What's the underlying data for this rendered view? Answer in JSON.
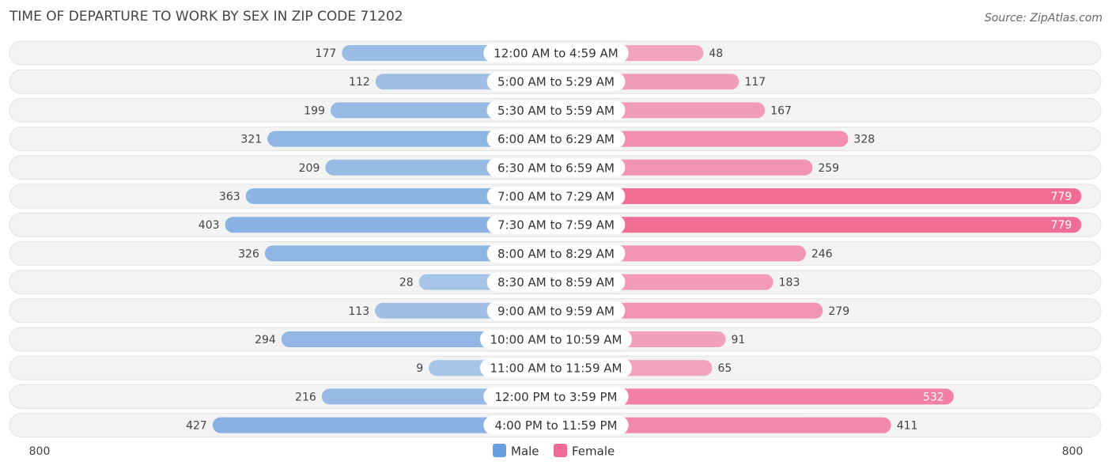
{
  "chart_data": {
    "type": "butterfly",
    "title": "TIME OF DEPARTURE TO WORK BY SEX IN ZIP CODE 71202",
    "source": "Source: ZipAtlas.com",
    "categories": [
      "12:00 AM to 4:59 AM",
      "5:00 AM to 5:29 AM",
      "5:30 AM to 5:59 AM",
      "6:00 AM to 6:29 AM",
      "6:30 AM to 6:59 AM",
      "7:00 AM to 7:29 AM",
      "7:30 AM to 7:59 AM",
      "8:00 AM to 8:29 AM",
      "8:30 AM to 8:59 AM",
      "9:00 AM to 9:59 AM",
      "10:00 AM to 10:59 AM",
      "11:00 AM to 11:59 AM",
      "12:00 PM to 3:59 PM",
      "4:00 PM to 11:59 PM"
    ],
    "series": [
      {
        "name": "Male",
        "color": "#6a9fdd",
        "values": [
          177,
          112,
          199,
          321,
          209,
          363,
          403,
          326,
          28,
          113,
          294,
          9,
          216,
          427
        ]
      },
      {
        "name": "Female",
        "color": "#f06b95",
        "values": [
          48,
          117,
          167,
          328,
          259,
          779,
          779,
          246,
          183,
          279,
          91,
          65,
          532,
          411
        ]
      }
    ],
    "xlim": [
      0,
      800
    ],
    "xticks": [
      800
    ]
  }
}
